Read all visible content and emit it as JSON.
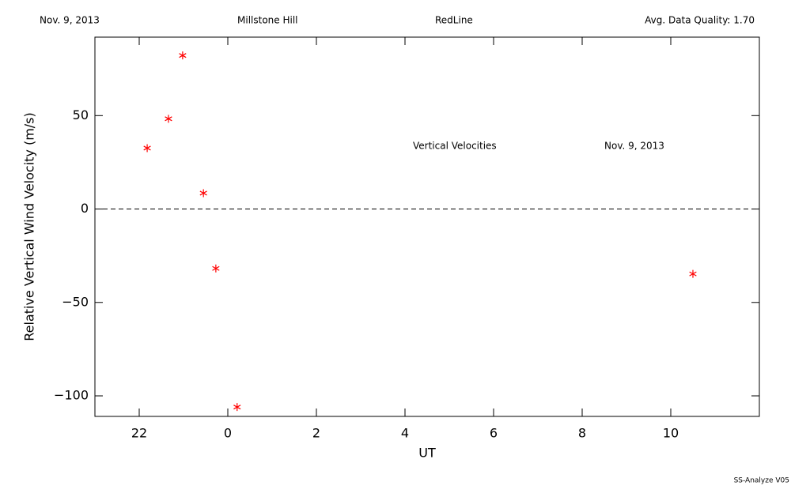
{
  "chart_data": {
    "type": "scatter",
    "header": [
      "Nov. 9, 2013",
      "Millstone Hill",
      "RedLine",
      "Avg. Data Quality: 1.70"
    ],
    "annotations": [
      "Vertical Velocities",
      "Nov. 9, 2013"
    ],
    "footer": "SS-Analyze V05",
    "xlabel": "UT",
    "ylabel": "Relative Vertical Wind Velocity (m/s)",
    "xlim": [
      -3,
      12
    ],
    "ylim": [
      -111,
      92
    ],
    "xticks": [
      {
        "value": -2,
        "label": "22"
      },
      0,
      2,
      4,
      6,
      8,
      10
    ],
    "yticks": [
      {
        "value": -100,
        "label": "−100"
      },
      {
        "value": -50,
        "label": "−50"
      },
      0,
      50
    ],
    "hline": 0,
    "color": "#ff0000",
    "x": [
      -1.82,
      -1.34,
      -1.02,
      -0.55,
      -0.27,
      0.21,
      10.5
    ],
    "values": [
      32.6,
      48.3,
      82.2,
      8.5,
      -31.8,
      -106,
      -34.7
    ]
  }
}
